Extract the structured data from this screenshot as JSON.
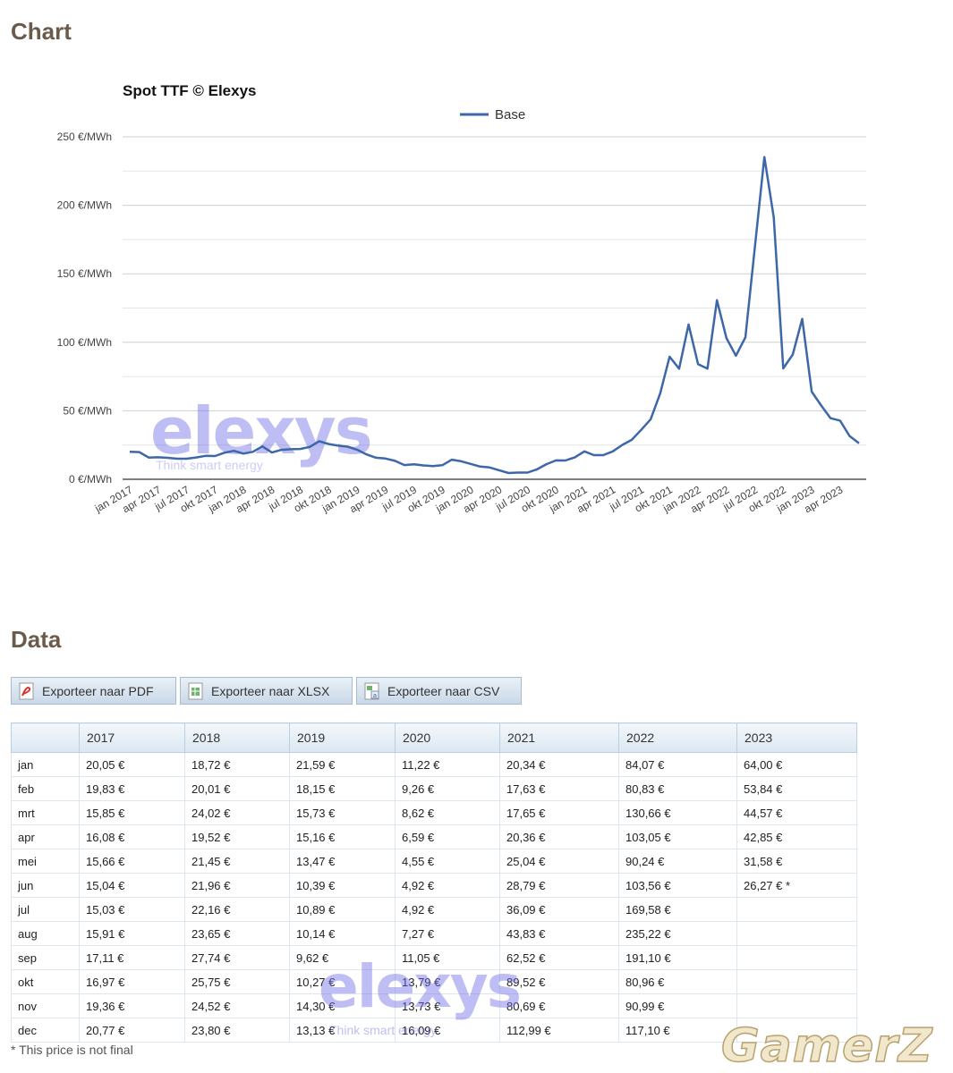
{
  "headings": {
    "chart": "Chart",
    "data": "Data"
  },
  "export_buttons": [
    {
      "label": "Exporteer naar PDF",
      "icon": "pdf-file-icon"
    },
    {
      "label": "Exporteer naar XLSX",
      "icon": "xlsx-file-icon"
    },
    {
      "label": "Exporteer naar CSV",
      "icon": "csv-file-icon"
    }
  ],
  "chart_data": {
    "type": "line",
    "title": "Spot TTF © Elexys",
    "xlabel": "",
    "ylabel": "",
    "ylim": [
      0,
      250
    ],
    "y_tick_labels": [
      "0 €/MWh",
      "50 €/MWh",
      "100 €/MWh",
      "150 €/MWh",
      "200 €/MWh",
      "250 €/MWh"
    ],
    "x_tick_labels": [
      "jan 2017",
      "apr 2017",
      "jul 2017",
      "okt 2017",
      "jan 2018",
      "apr 2018",
      "jul 2018",
      "okt 2018",
      "jan 2019",
      "apr 2019",
      "jul 2019",
      "okt 2019",
      "jan 2020",
      "apr 2020",
      "jul 2020",
      "okt 2020",
      "jan 2021",
      "apr 2021",
      "jul 2021",
      "okt 2021",
      "jan 2022",
      "apr 2022",
      "jul 2022",
      "okt 2022",
      "jan 2023",
      "apr 2023"
    ],
    "legend_position": "top",
    "grid": true,
    "color": "#3d67a8",
    "series": [
      {
        "name": "Base",
        "x": [
          "jan 2017",
          "feb 2017",
          "mrt 2017",
          "apr 2017",
          "mei 2017",
          "jun 2017",
          "jul 2017",
          "aug 2017",
          "sep 2017",
          "okt 2017",
          "nov 2017",
          "dec 2017",
          "jan 2018",
          "feb 2018",
          "mrt 2018",
          "apr 2018",
          "mei 2018",
          "jun 2018",
          "jul 2018",
          "aug 2018",
          "sep 2018",
          "okt 2018",
          "nov 2018",
          "dec 2018",
          "jan 2019",
          "feb 2019",
          "mrt 2019",
          "apr 2019",
          "mei 2019",
          "jun 2019",
          "jul 2019",
          "aug 2019",
          "sep 2019",
          "okt 2019",
          "nov 2019",
          "dec 2019",
          "jan 2020",
          "feb 2020",
          "mrt 2020",
          "apr 2020",
          "mei 2020",
          "jun 2020",
          "jul 2020",
          "aug 2020",
          "sep 2020",
          "okt 2020",
          "nov 2020",
          "dec 2020",
          "jan 2021",
          "feb 2021",
          "mrt 2021",
          "apr 2021",
          "mei 2021",
          "jun 2021",
          "jul 2021",
          "aug 2021",
          "sep 2021",
          "okt 2021",
          "nov 2021",
          "dec 2021",
          "jan 2022",
          "feb 2022",
          "mrt 2022",
          "apr 2022",
          "mei 2022",
          "jun 2022",
          "jul 2022",
          "aug 2022",
          "sep 2022",
          "okt 2022",
          "nov 2022",
          "dec 2022",
          "jan 2023",
          "feb 2023",
          "mrt 2023",
          "apr 2023",
          "mei 2023",
          "jun 2023"
        ],
        "values": [
          20.05,
          19.83,
          15.85,
          16.08,
          15.66,
          15.04,
          15.03,
          15.91,
          17.11,
          16.97,
          19.36,
          20.77,
          18.72,
          20.01,
          24.02,
          19.52,
          21.45,
          21.96,
          22.16,
          23.65,
          27.74,
          25.75,
          24.52,
          23.8,
          21.59,
          18.15,
          15.73,
          15.16,
          13.47,
          10.39,
          10.89,
          10.14,
          9.62,
          10.27,
          14.3,
          13.13,
          11.22,
          9.26,
          8.62,
          6.59,
          4.55,
          4.92,
          4.92,
          7.27,
          11.05,
          13.79,
          13.73,
          16.09,
          20.34,
          17.63,
          17.65,
          20.36,
          25.04,
          28.79,
          36.09,
          43.83,
          62.52,
          89.52,
          80.69,
          112.99,
          84.07,
          80.83,
          130.66,
          103.05,
          90.24,
          103.56,
          169.58,
          235.22,
          191.1,
          80.96,
          90.99,
          117.1,
          64.0,
          53.84,
          44.57,
          42.85,
          31.58,
          26.27
        ]
      }
    ]
  },
  "table": {
    "columns": [
      "",
      "2017",
      "2018",
      "2019",
      "2020",
      "2021",
      "2022",
      "2023"
    ],
    "rows": [
      [
        "jan",
        "20,05 €",
        "18,72 €",
        "21,59 €",
        "11,22 €",
        "20,34 €",
        "84,07 €",
        "64,00 €"
      ],
      [
        "feb",
        "19,83 €",
        "20,01 €",
        "18,15 €",
        "9,26 €",
        "17,63 €",
        "80,83 €",
        "53,84 €"
      ],
      [
        "mrt",
        "15,85 €",
        "24,02 €",
        "15,73 €",
        "8,62 €",
        "17,65 €",
        "130,66 €",
        "44,57 €"
      ],
      [
        "apr",
        "16,08 €",
        "19,52 €",
        "15,16 €",
        "6,59 €",
        "20,36 €",
        "103,05 €",
        "42,85 €"
      ],
      [
        "mei",
        "15,66 €",
        "21,45 €",
        "13,47 €",
        "4,55 €",
        "25,04 €",
        "90,24 €",
        "31,58 €"
      ],
      [
        "jun",
        "15,04 €",
        "21,96 €",
        "10,39 €",
        "4,92 €",
        "28,79 €",
        "103,56 €",
        "26,27 € *"
      ],
      [
        "jul",
        "15,03 €",
        "22,16 €",
        "10,89 €",
        "4,92 €",
        "36,09 €",
        "169,58 €",
        ""
      ],
      [
        "aug",
        "15,91 €",
        "23,65 €",
        "10,14 €",
        "7,27 €",
        "43,83 €",
        "235,22 €",
        ""
      ],
      [
        "sep",
        "17,11 €",
        "27,74 €",
        "9,62 €",
        "11,05 €",
        "62,52 €",
        "191,10 €",
        ""
      ],
      [
        "okt",
        "16,97 €",
        "25,75 €",
        "10,27 €",
        "13,79 €",
        "89,52 €",
        "80,96 €",
        ""
      ],
      [
        "nov",
        "19,36 €",
        "24,52 €",
        "14,30 €",
        "13,73 €",
        "80,69 €",
        "90,99 €",
        ""
      ],
      [
        "dec",
        "20,77 €",
        "23,80 €",
        "13,13 €",
        "16,09 €",
        "112,99 €",
        "117,10 €",
        ""
      ]
    ]
  },
  "footnote": "* This price is not final",
  "watermarks": {
    "logo": "elexys",
    "tagline": "Think smart energy",
    "corner": "GamerZ"
  }
}
